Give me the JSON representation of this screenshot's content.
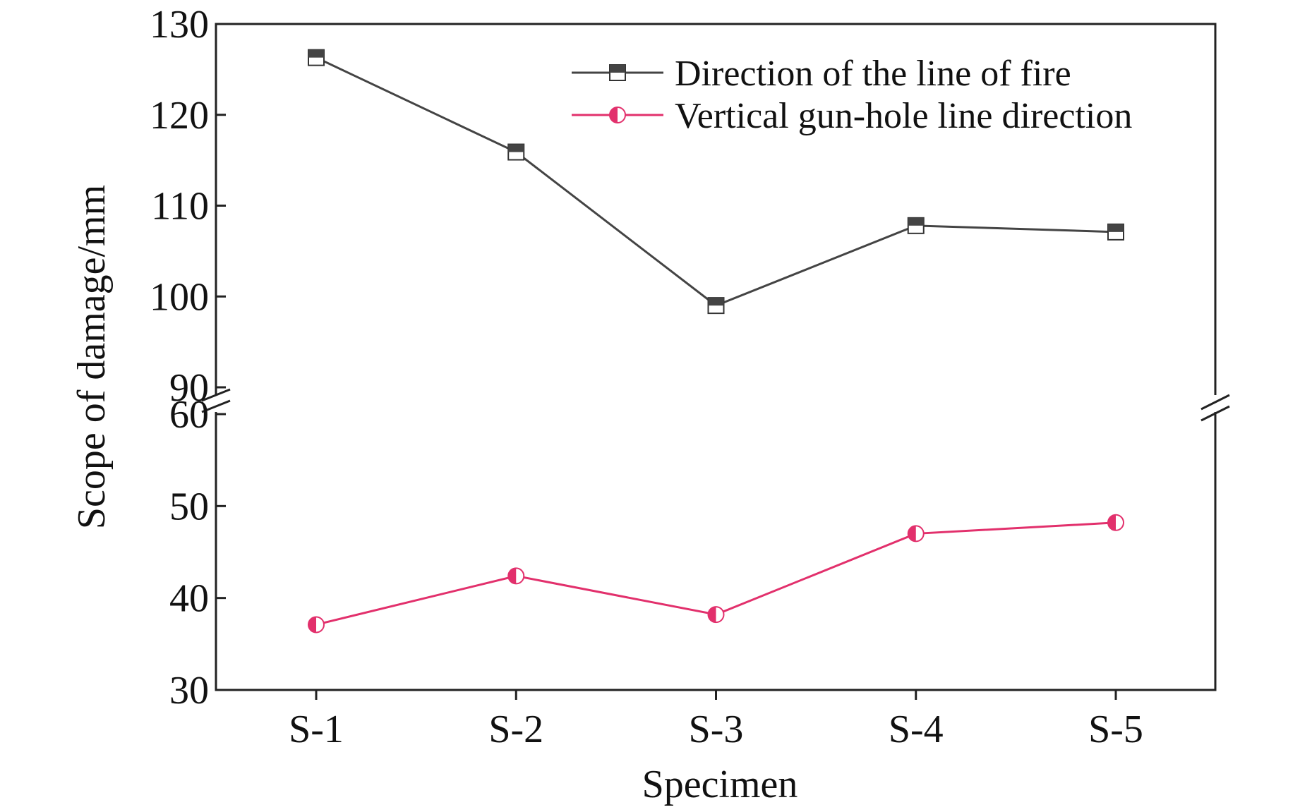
{
  "chart_data": {
    "type": "line",
    "categories": [
      "S-1",
      "S-2",
      "S-3",
      "S-4",
      "S-5"
    ],
    "xlabel": "Specimen",
    "ylabel": "Scope of damage/mm",
    "axis_break": {
      "lower_range": [
        30,
        60
      ],
      "upper_range": [
        90,
        130
      ]
    },
    "y_ticks_lower": [
      "30",
      "40",
      "50",
      "60"
    ],
    "y_ticks_upper": [
      "90",
      "100",
      "110",
      "120",
      "130"
    ],
    "legend_position": "top-right",
    "grid": false,
    "series": [
      {
        "name": "Direction of the line of fire",
        "color": "#444444",
        "marker": "square-half",
        "values": [
          126.3,
          115.9,
          99.0,
          107.8,
          107.1
        ]
      },
      {
        "name": "Vertical gun-hole line direction",
        "color": "#e2306c",
        "marker": "circle-half",
        "values": [
          37.1,
          42.4,
          38.2,
          47.0,
          48.2
        ]
      }
    ]
  }
}
